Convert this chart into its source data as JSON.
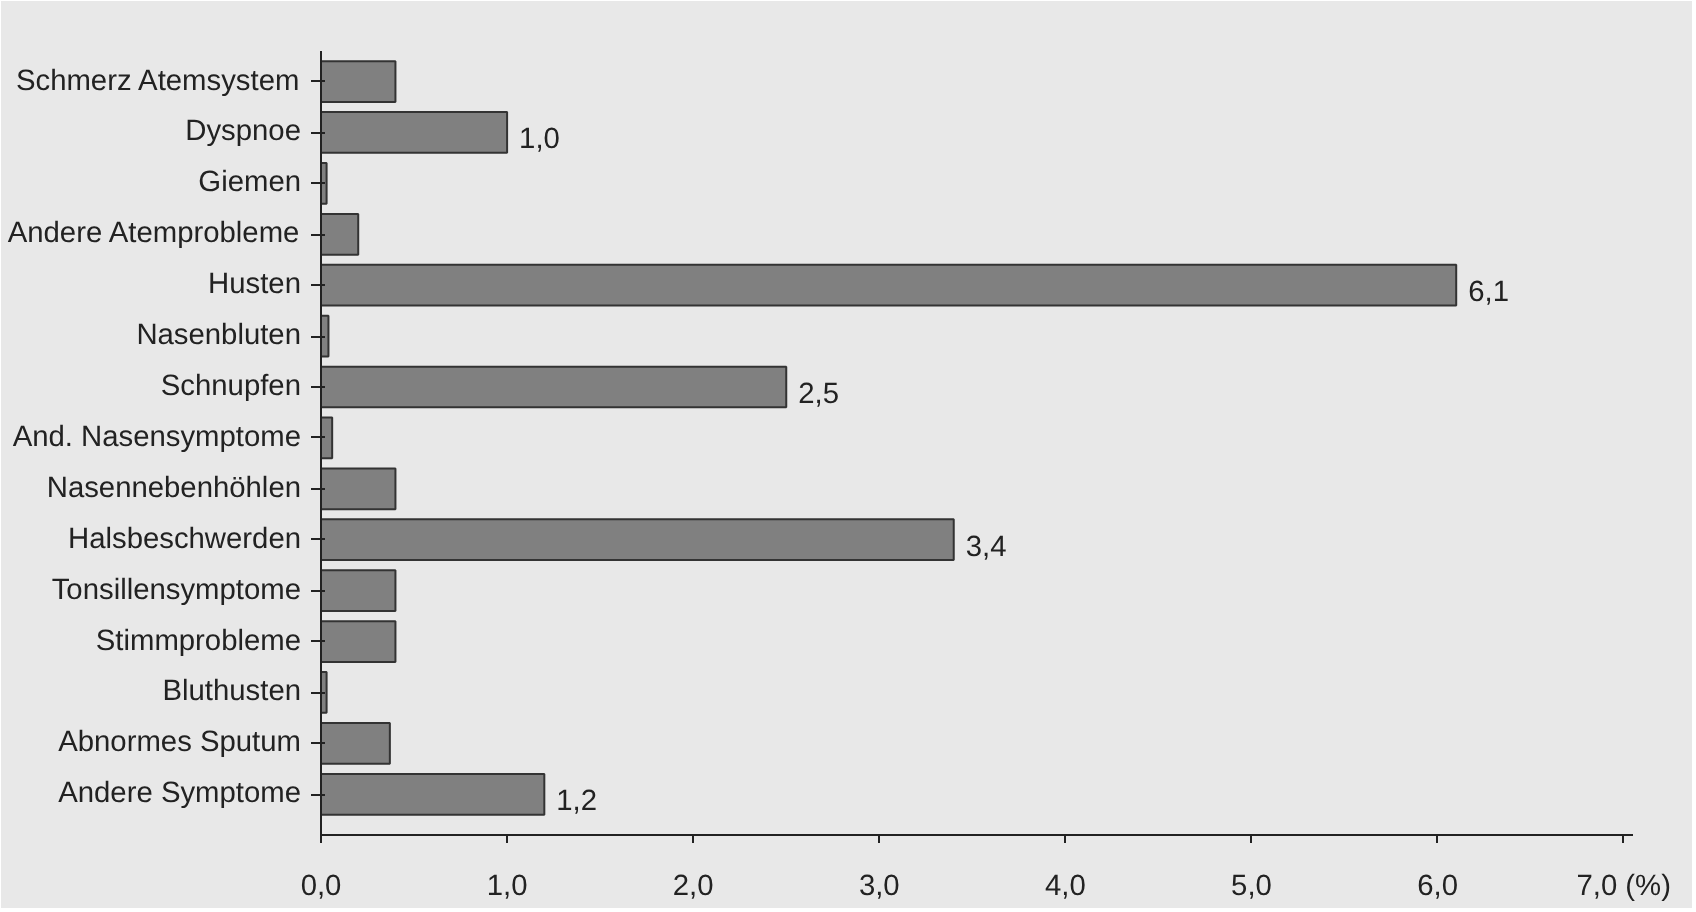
{
  "chart_data": {
    "type": "bar",
    "orientation": "horizontal",
    "categories": [
      "Schmerz Atemsystem",
      "Dyspnoe",
      "Giemen",
      "Andere Atemprobleme",
      "Husten",
      "Nasenbluten",
      "Schnupfen",
      "And. Nasensymptome",
      "Nasennebenhöhlen",
      "Halsbeschwerden",
      "Tonsillensymptome",
      "Stimmprobleme",
      "Bluthusten",
      "Abnormes Sputum",
      "Andere Symptome"
    ],
    "values": [
      0.4,
      1.0,
      0.03,
      0.2,
      6.1,
      0.04,
      2.5,
      0.06,
      0.4,
      3.4,
      0.4,
      0.4,
      0.03,
      0.37,
      1.2
    ],
    "value_labels": [
      null,
      "1,0",
      null,
      null,
      "6,1",
      null,
      "2,5",
      null,
      null,
      "3,4",
      null,
      null,
      null,
      null,
      "1,2"
    ],
    "color": "#808080",
    "xlim": [
      0,
      7.05
    ],
    "xticks": [
      {
        "value": 0,
        "label": "0,0"
      },
      {
        "value": 1,
        "label": "1,0"
      },
      {
        "value": 2,
        "label": "2,0"
      },
      {
        "value": 3,
        "label": "3,0"
      },
      {
        "value": 4,
        "label": "4,0"
      },
      {
        "value": 5,
        "label": "5,0"
      },
      {
        "value": 6,
        "label": "6,0"
      },
      {
        "value": 7,
        "label": "7,0 (%)"
      }
    ],
    "grid": false
  }
}
